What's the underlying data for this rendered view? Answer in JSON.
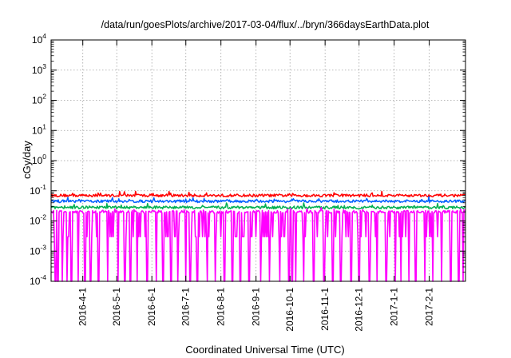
{
  "chart_data": {
    "type": "line",
    "title": "/data/run/goesPlots/archive/2017-03-04/flux/../bryn/366daysEarthData.plot",
    "xlabel": "Coordinated Universal Time (UTC)",
    "ylabel": "cGy/day",
    "yscale": "log",
    "ylim": [
      0.0001,
      10000
    ],
    "xlim": [
      "2016-03-04",
      "2017-03-05"
    ],
    "grid": true,
    "y_ticks": [
      {
        "base": "10",
        "exp": "-4",
        "value": 0.0001
      },
      {
        "base": "10",
        "exp": "-3",
        "value": 0.001
      },
      {
        "base": "10",
        "exp": "-2",
        "value": 0.01
      },
      {
        "base": "10",
        "exp": "-1",
        "value": 0.1
      },
      {
        "base": "10",
        "exp": "0",
        "value": 1
      },
      {
        "base": "10",
        "exp": "1",
        "value": 10
      },
      {
        "base": "10",
        "exp": "2",
        "value": 100
      },
      {
        "base": "10",
        "exp": "3",
        "value": 1000
      },
      {
        "base": "10",
        "exp": "4",
        "value": 10000
      }
    ],
    "x_ticks": [
      {
        "label": "2016-4-1",
        "date": "2016-04-01"
      },
      {
        "label": "2016-5-1",
        "date": "2016-05-01"
      },
      {
        "label": "2016-6-1",
        "date": "2016-06-01"
      },
      {
        "label": "2016-7-1",
        "date": "2016-07-01"
      },
      {
        "label": "2016-8-1",
        "date": "2016-08-01"
      },
      {
        "label": "2016-9-1",
        "date": "2016-09-01"
      },
      {
        "label": "2016-10-1",
        "date": "2016-10-01"
      },
      {
        "label": "2016-11-1",
        "date": "2016-11-01"
      },
      {
        "label": "2016-12-1",
        "date": "2016-12-01"
      },
      {
        "label": "2017-1-1",
        "date": "2017-01-01"
      },
      {
        "label": "2017-2-1",
        "date": "2017-02-01"
      }
    ],
    "series": [
      {
        "color": "#ff0000",
        "typical": 0.07,
        "range": [
          0.06,
          0.1
        ]
      },
      {
        "color": "#0060ff",
        "typical": 0.045,
        "range": [
          0.035,
          0.06
        ]
      },
      {
        "color": "#00b050",
        "typical": 0.028,
        "range": [
          0.02,
          0.035
        ]
      },
      {
        "color": "#ff00ff",
        "typical": 0.02,
        "range": [
          0.0001,
          0.025
        ],
        "floor": 0.003
      }
    ],
    "dropout_dates": [
      "2016-03-08",
      "2016-03-10",
      "2016-03-14",
      "2016-03-18",
      "2016-03-22",
      "2016-03-28",
      "2016-04-03",
      "2016-04-08",
      "2016-04-15",
      "2016-04-23",
      "2016-05-02",
      "2016-05-08",
      "2016-05-13",
      "2016-05-19",
      "2016-05-28",
      "2016-06-05",
      "2016-06-11",
      "2016-06-18",
      "2016-06-24",
      "2016-07-01",
      "2016-07-05",
      "2016-07-11",
      "2016-07-20",
      "2016-07-27",
      "2016-08-04",
      "2016-08-11",
      "2016-08-18",
      "2016-08-26",
      "2016-09-05",
      "2016-09-13",
      "2016-09-22",
      "2016-09-30",
      "2016-10-03",
      "2016-10-06",
      "2016-10-13",
      "2016-10-22",
      "2016-10-31",
      "2016-11-08",
      "2016-11-15",
      "2016-11-24",
      "2016-12-01",
      "2016-12-10",
      "2016-12-17",
      "2016-12-25",
      "2017-01-02",
      "2017-01-07",
      "2017-01-14",
      "2017-01-20",
      "2017-01-28",
      "2017-02-04",
      "2017-02-12",
      "2017-02-20",
      "2017-02-27",
      "2017-03-03"
    ]
  }
}
